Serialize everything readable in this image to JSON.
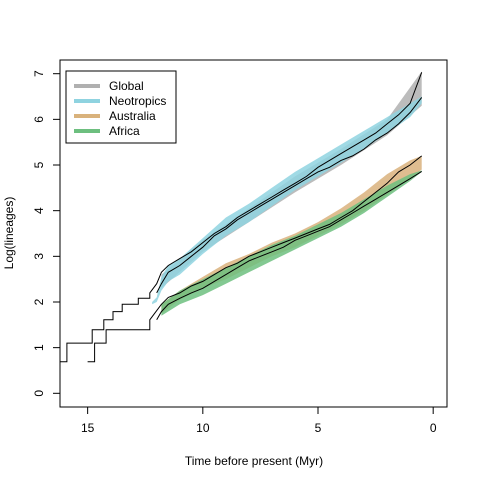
{
  "chart_data": {
    "type": "line",
    "title": "",
    "xlabel": "Time before present (Myr)",
    "ylabel": "Log(lineages)",
    "xlim": [
      16.2,
      -0.6
    ],
    "ylim": [
      -0.3,
      7.3
    ],
    "x_reversed": true,
    "grid": false,
    "legend_position": "top-left",
    "xticks": [
      {
        "value": 15,
        "label": "15"
      },
      {
        "value": 10,
        "label": "10"
      },
      {
        "value": 5,
        "label": "5"
      },
      {
        "value": 0,
        "label": "0"
      }
    ],
    "yticks": [
      {
        "value": 0,
        "label": "0"
      },
      {
        "value": 1,
        "label": "1"
      },
      {
        "value": 2,
        "label": "2"
      },
      {
        "value": 3,
        "label": "3"
      },
      {
        "value": 4,
        "label": "4"
      },
      {
        "value": 5,
        "label": "5"
      },
      {
        "value": 6,
        "label": "6"
      },
      {
        "value": 7,
        "label": "7"
      }
    ],
    "series": [
      {
        "name": "Global",
        "color": "#b0b0b0",
        "band": {
          "x": [
            11.8,
            10,
            8,
            6,
            4,
            2,
            0.5
          ],
          "lower": [
            2.3,
            3.1,
            3.75,
            4.4,
            5.0,
            5.65,
            6.3
          ],
          "upper": [
            2.6,
            3.35,
            4.05,
            4.75,
            5.35,
            6.0,
            7.05
          ]
        }
      },
      {
        "name": "Neotropics",
        "color": "#8fd3e0",
        "band": {
          "x": [
            12.2,
            12.0,
            11.8,
            11.5,
            11.0,
            10.0,
            9.0,
            8.0,
            7.0,
            6.0,
            5.0,
            4.0,
            3.0,
            2.0,
            1.0,
            0.5
          ],
          "lower": [
            1.95,
            2.0,
            2.25,
            2.45,
            2.6,
            3.05,
            3.45,
            3.75,
            4.1,
            4.45,
            4.75,
            5.05,
            5.35,
            5.7,
            6.05,
            6.35
          ],
          "upper": [
            2.0,
            2.1,
            2.55,
            2.8,
            2.95,
            3.4,
            3.85,
            4.15,
            4.5,
            4.85,
            5.15,
            5.45,
            5.75,
            6.05,
            6.35,
            6.5
          ]
        }
      },
      {
        "name": "Australia",
        "color": "#d9b27c",
        "band": {
          "x": [
            11.8,
            11.0,
            10.0,
            9.0,
            8.0,
            7.0,
            6.0,
            5.0,
            4.0,
            3.0,
            2.0,
            1.0,
            0.5
          ],
          "lower": [
            1.75,
            2.05,
            2.3,
            2.5,
            2.75,
            3.0,
            3.2,
            3.45,
            3.7,
            4.0,
            4.35,
            4.7,
            4.9
          ],
          "upper": [
            1.95,
            2.25,
            2.55,
            2.85,
            3.05,
            3.3,
            3.5,
            3.75,
            4.05,
            4.4,
            4.8,
            5.1,
            5.2
          ]
        }
      },
      {
        "name": "Africa",
        "color": "#6dbf7f",
        "band": {
          "x": [
            11.8,
            11.0,
            10.0,
            9.0,
            8.0,
            7.0,
            6.0,
            5.0,
            4.0,
            3.0,
            2.0,
            1.0,
            0.5
          ],
          "lower": [
            1.7,
            1.95,
            2.15,
            2.4,
            2.65,
            2.9,
            3.15,
            3.4,
            3.65,
            3.95,
            4.3,
            4.65,
            4.85
          ],
          "upper": [
            1.95,
            2.25,
            2.5,
            2.75,
            3.0,
            3.25,
            3.45,
            3.7,
            3.95,
            4.25,
            4.55,
            4.8,
            4.88
          ]
        }
      }
    ],
    "lines": [
      {
        "name": "Global",
        "x": [
          16.2,
          15.9,
          15.9,
          14.8,
          14.8,
          14.3,
          14.3,
          13.9,
          13.9,
          13.5,
          13.5,
          12.8,
          12.8,
          12.3,
          12.3,
          12.0,
          11.8,
          11.5,
          11.0,
          10.5,
          10.0,
          9.5,
          9.0,
          8.5,
          8.0,
          7.5,
          7.0,
          6.5,
          6.0,
          5.5,
          5.0,
          4.5,
          4.0,
          3.5,
          3.0,
          2.5,
          2.0,
          1.5,
          1.0,
          0.5
        ],
        "y": [
          0.69,
          0.69,
          1.1,
          1.1,
          1.39,
          1.39,
          1.61,
          1.61,
          1.79,
          1.79,
          1.95,
          1.95,
          2.08,
          2.08,
          2.2,
          2.4,
          2.65,
          2.8,
          2.95,
          3.1,
          3.3,
          3.5,
          3.65,
          3.85,
          4.0,
          4.15,
          4.3,
          4.45,
          4.6,
          4.75,
          4.95,
          5.1,
          5.25,
          5.4,
          5.55,
          5.7,
          5.9,
          6.1,
          6.35,
          7.03
        ]
      },
      {
        "name": "Neotropics",
        "x": [
          12.0,
          11.8,
          11.5,
          11.0,
          10.5,
          10.0,
          9.5,
          9.0,
          8.5,
          8.0,
          7.5,
          7.0,
          6.5,
          6.0,
          5.5,
          5.0,
          4.5,
          4.0,
          3.5,
          3.0,
          2.5,
          2.0,
          1.5,
          1.0,
          0.5
        ],
        "y": [
          2.2,
          2.4,
          2.65,
          2.8,
          3.0,
          3.2,
          3.45,
          3.6,
          3.8,
          3.95,
          4.1,
          4.25,
          4.4,
          4.55,
          4.7,
          4.85,
          4.95,
          5.1,
          5.2,
          5.35,
          5.55,
          5.7,
          5.9,
          6.15,
          6.48
        ]
      },
      {
        "name": "Australia",
        "x": [
          15.0,
          14.7,
          14.7,
          14.2,
          14.2,
          13.6,
          13.6,
          12.3,
          12.3,
          11.8,
          11.5,
          11.0,
          10.5,
          10.0,
          9.5,
          9.0,
          8.5,
          8.0,
          7.5,
          7.0,
          6.5,
          6.0,
          5.5,
          5.0,
          4.5,
          4.0,
          3.5,
          3.0,
          2.5,
          2.0,
          1.5,
          1.0,
          0.5
        ],
        "y": [
          0.69,
          0.69,
          1.1,
          1.1,
          1.39,
          1.39,
          1.39,
          1.39,
          1.61,
          1.95,
          2.1,
          2.2,
          2.35,
          2.45,
          2.6,
          2.75,
          2.85,
          3.0,
          3.1,
          3.2,
          3.3,
          3.4,
          3.5,
          3.6,
          3.7,
          3.85,
          4.0,
          4.2,
          4.4,
          4.6,
          4.85,
          5.0,
          5.2
        ]
      },
      {
        "name": "Africa",
        "x": [
          12.0,
          11.8,
          11.5,
          11.0,
          10.5,
          10.0,
          9.5,
          9.0,
          8.5,
          8.0,
          7.5,
          7.0,
          6.5,
          6.0,
          5.5,
          5.0,
          4.5,
          4.0,
          3.5,
          3.0,
          2.5,
          2.0,
          1.5,
          1.0,
          0.5
        ],
        "y": [
          1.61,
          1.79,
          1.95,
          2.08,
          2.2,
          2.3,
          2.45,
          2.6,
          2.75,
          2.9,
          3.0,
          3.1,
          3.2,
          3.35,
          3.45,
          3.55,
          3.65,
          3.8,
          3.95,
          4.1,
          4.25,
          4.4,
          4.55,
          4.7,
          4.86
        ]
      }
    ]
  }
}
